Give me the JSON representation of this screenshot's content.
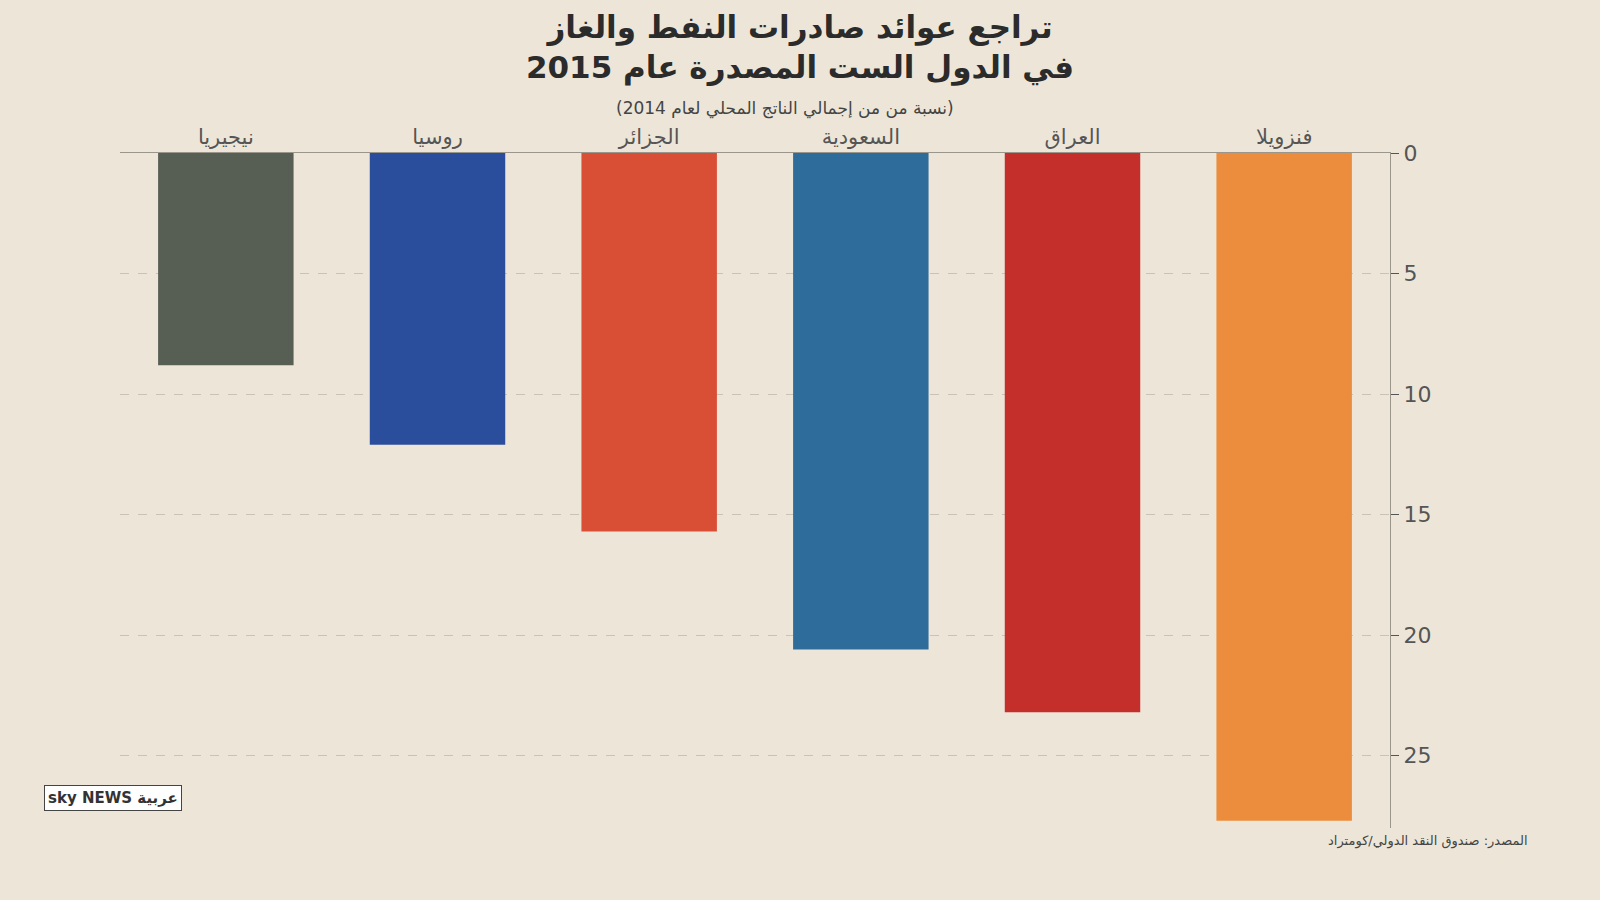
{
  "chart_data": {
    "type": "bar",
    "title": "تراجع عوائد صادرات النفط والغاز في الدول الست المصدرة عام 2015",
    "subtitle": "(نسبة من من إجمالي الناتج المحلي لعام 2014)",
    "source": "المصدر: صندوق النقد الدولي/كومتراد",
    "logo": "sky NEWS عربية",
    "categories": [
      "نيجيريا",
      "روسيا",
      "الجزائر",
      "السعودية",
      "العراق",
      "فنزويلا"
    ],
    "values": [
      8.8,
      12.1,
      15.7,
      20.6,
      23.2,
      27.7
    ],
    "colors": [
      "#575f55",
      "#2b4e9c",
      "#d84f35",
      "#2e6c9c",
      "#c52f2b",
      "#eb8d3d"
    ],
    "ylim": [
      0,
      28
    ],
    "yticks": [
      0,
      5,
      10,
      15,
      20,
      25
    ],
    "grid": true
  }
}
